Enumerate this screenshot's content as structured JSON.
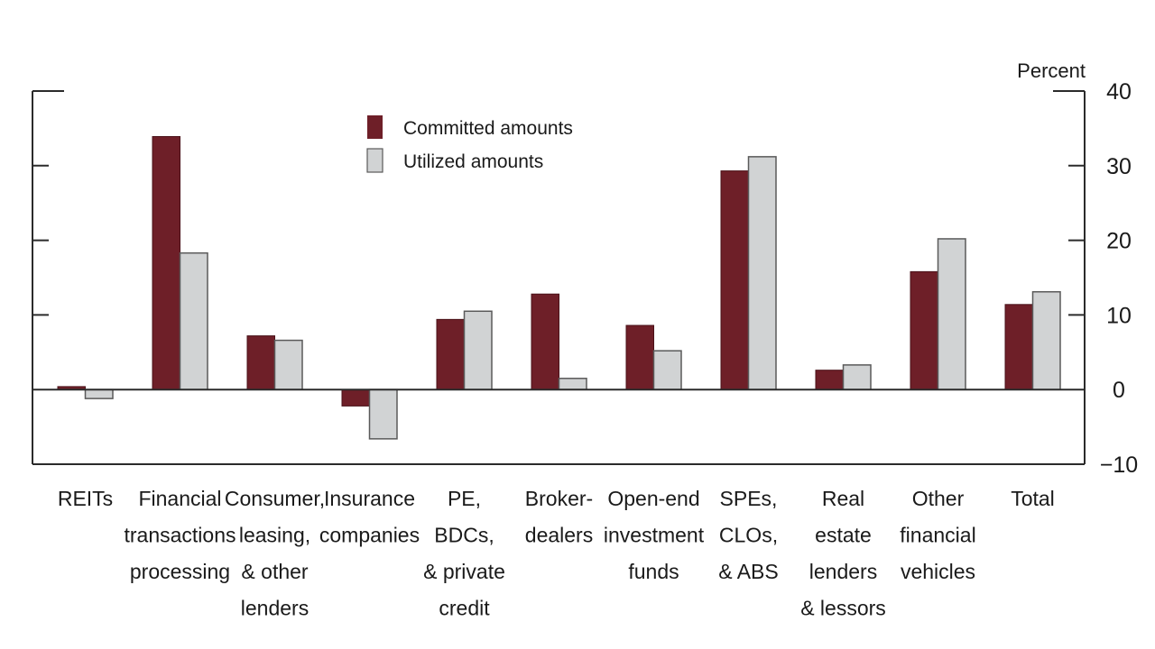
{
  "chart_data": {
    "type": "bar",
    "title": "",
    "xlabel": "",
    "ylabel": "Percent",
    "ylim": [
      -10,
      40
    ],
    "yticks": [
      -10,
      0,
      10,
      20,
      30,
      40
    ],
    "ytick_labels": [
      "−10",
      "0",
      "10",
      "20",
      "30",
      "40"
    ],
    "y_axis_side": "right",
    "grid": false,
    "legend_position": "top-left-center",
    "categories": [
      [
        "REITs"
      ],
      [
        "Financial",
        "transactions",
        "processing"
      ],
      [
        "Consumer,",
        "leasing,",
        "& other",
        "lenders"
      ],
      [
        "Insurance",
        "companies"
      ],
      [
        "PE,",
        "BDCs,",
        "& private",
        "credit"
      ],
      [
        "Broker-",
        "dealers"
      ],
      [
        "Open-end",
        "investment",
        "funds"
      ],
      [
        "SPEs,",
        "CLOs,",
        "& ABS"
      ],
      [
        "Real",
        "estate",
        "lenders",
        "& lessors"
      ],
      [
        "Other",
        "financial",
        "vehicles"
      ],
      [
        "Total"
      ]
    ],
    "series": [
      {
        "name": "Committed amounts",
        "color": "#6e1f28",
        "values": [
          0.4,
          33.9,
          7.2,
          -2.2,
          9.4,
          12.8,
          8.6,
          29.3,
          2.6,
          15.8,
          11.4
        ]
      },
      {
        "name": "Utilized amounts",
        "color": "#d1d3d4",
        "values": [
          -1.2,
          18.3,
          6.6,
          -6.6,
          10.5,
          1.5,
          5.2,
          31.2,
          3.3,
          20.2,
          13.1
        ]
      }
    ]
  }
}
